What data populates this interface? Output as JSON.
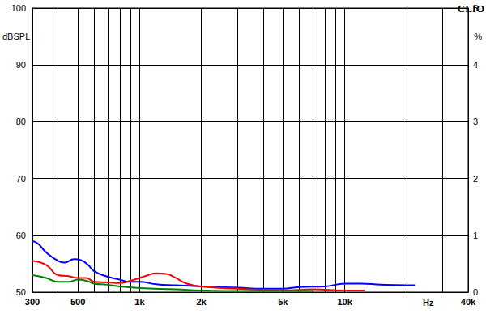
{
  "chart_data": {
    "type": "line",
    "title": "CLIO",
    "xlabel": "Hz",
    "ylabel": "dBSPL",
    "y2label": "%",
    "log": "x",
    "grid": true,
    "xlim": [
      300,
      40000
    ],
    "xticks": [
      300,
      500,
      {
        "value": 1000,
        "label": "1k"
      },
      {
        "value": 2000,
        "label": "2k"
      },
      {
        "value": 5000,
        "label": "5k"
      },
      {
        "value": 10000,
        "label": "10k"
      },
      {
        "value": 40000,
        "label": "40k"
      }
    ],
    "ylim": [
      50,
      100
    ],
    "yticks": [
      50,
      60,
      70,
      80,
      90,
      100
    ],
    "y2lim": [
      0,
      5
    ],
    "y2ticks": [
      0,
      1,
      2,
      3,
      4,
      5
    ],
    "series": [
      {
        "color": "#0000ff",
        "x": [
          300,
          320,
          350,
          400,
          430,
          480,
          520,
          560,
          600,
          700,
          800,
          900,
          1000,
          1200,
          1500,
          2000,
          3000,
          4000,
          5000,
          6000,
          8000,
          10000,
          12000,
          15000,
          20000,
          22000
        ],
        "values": [
          59.0,
          58.5,
          57.0,
          55.5,
          55.2,
          55.8,
          55.6,
          54.8,
          53.7,
          52.7,
          52.2,
          51.8,
          51.8,
          51.4,
          51.2,
          51.0,
          50.8,
          50.6,
          50.6,
          50.9,
          51.0,
          51.5,
          51.5,
          51.3,
          51.2,
          51.2
        ]
      },
      {
        "color": "#ff0000",
        "x": [
          300,
          350,
          400,
          450,
          500,
          550,
          600,
          700,
          800,
          900,
          1000,
          1100,
          1200,
          1350,
          1500,
          1700,
          2000,
          3000,
          5000,
          7000,
          10000,
          12500
        ],
        "values": [
          55.5,
          54.8,
          53.0,
          52.8,
          52.5,
          52.5,
          51.8,
          51.7,
          51.6,
          52.0,
          52.5,
          53.0,
          53.3,
          53.2,
          52.5,
          51.5,
          51.0,
          50.6,
          50.3,
          50.5,
          50.3,
          50.3
        ]
      },
      {
        "color": "#008000",
        "x": [
          300,
          350,
          400,
          450,
          500,
          550,
          600,
          700,
          800,
          1000,
          1500,
          2000,
          3000,
          5000,
          7000
        ],
        "values": [
          53.0,
          52.5,
          51.8,
          51.8,
          52.2,
          52.0,
          51.5,
          51.3,
          51.0,
          50.7,
          50.5,
          50.3,
          50.2,
          50.2,
          50.2
        ]
      }
    ]
  }
}
